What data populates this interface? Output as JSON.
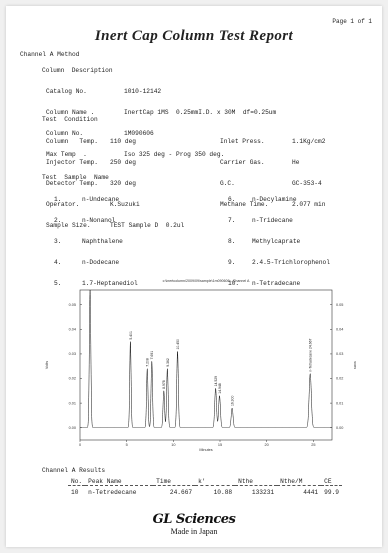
{
  "page": "Page 1 of 1",
  "title": "Inert Cap  Column  Test  Report",
  "channel_method": "Channel A Method",
  "column_description": {
    "heading": "Column  Description",
    "rows": [
      {
        "label": "Catalog No.",
        "value": "1010-12142"
      },
      {
        "label": "Column Name .",
        "value": "InertCap 1MS  0.25mmI.D. x 30M  df=0.25um"
      },
      {
        "label": "Column No.",
        "value": "1M090606"
      },
      {
        "label": "Max Temp  .",
        "value": "Iso 325 deg - Prog 350 deg."
      }
    ]
  },
  "test_condition": {
    "heading": "Test  Condition",
    "left": [
      {
        "label": "Column   Temp.",
        "value": "110 deg"
      },
      {
        "label": "Injector Temp.",
        "value": "250 deg"
      },
      {
        "label": "Detector Temp.",
        "value": "320 deg"
      },
      {
        "label": "Operator.",
        "value": "K.Suzuki"
      },
      {
        "label": "Sample Size.",
        "value": "TEST Sample D  0.2ul"
      }
    ],
    "right": [
      {
        "label": "Inlet Press.",
        "value": "1.1Kg/cm2"
      },
      {
        "label": "Carrier Gas.",
        "value": "He"
      },
      {
        "label": "G.C.",
        "value": "GC-353-4"
      },
      {
        "label": "Methane Time.",
        "value": "2.077 min"
      }
    ]
  },
  "test_sample": {
    "heading": "Test  Sample  Name",
    "left": [
      {
        "no": "1.",
        "name": "n-Undecane"
      },
      {
        "no": "2.",
        "name": "n-Nonanol"
      },
      {
        "no": "3.",
        "name": "Naphthalene"
      },
      {
        "no": "4.",
        "name": "n-Dodecane"
      },
      {
        "no": "5.",
        "name": "1.7-Heptanediol"
      }
    ],
    "right": [
      {
        "no": "6.",
        "name": "n-Decylamine"
      },
      {
        "no": "7.",
        "name": "n-Tridecane"
      },
      {
        "no": "8.",
        "name": "Methylcaprate"
      },
      {
        "no": "9.",
        "name": "2.4.5-Trichlorophenol"
      },
      {
        "no": "10.",
        "name": "n-Tetradecane"
      }
    ]
  },
  "chart_data": {
    "type": "line",
    "title": "c:\\inertcolumn\\2009\\09\\sample\\1m090606 - Channel A",
    "xlabel": "Minutes",
    "ylabel": "Volts",
    "xlim": [
      0,
      27
    ],
    "ylim": [
      -0.005,
      0.056
    ],
    "x_ticks": [
      0,
      5,
      10,
      15,
      20,
      25
    ],
    "y_ticks": [
      0.0,
      0.01,
      0.02,
      0.03,
      0.04,
      0.05
    ],
    "y_tick_labels": [
      "0.00",
      "0.01",
      "0.02",
      "0.03",
      "0.04",
      "0.05"
    ],
    "peaks": [
      {
        "rt": 1.08,
        "height": 0.056,
        "label": ""
      },
      {
        "rt": 5.401,
        "height": 0.035,
        "label": "5.401"
      },
      {
        "rt": 7.208,
        "height": 0.024,
        "label": "7.208"
      },
      {
        "rt": 7.691,
        "height": 0.027,
        "label": "7.691"
      },
      {
        "rt": 8.978,
        "height": 0.015,
        "label": "8.978"
      },
      {
        "rt": 9.362,
        "height": 0.024,
        "label": "9.362"
      },
      {
        "rt": 10.45,
        "height": 0.031,
        "label": "10.450"
      },
      {
        "rt": 14.529,
        "height": 0.016,
        "label": "14.529"
      },
      {
        "rt": 14.948,
        "height": 0.013,
        "label": "14.948"
      },
      {
        "rt": 16.3,
        "height": 0.008,
        "label": "16.300"
      },
      {
        "rt": 24.667,
        "height": 0.022,
        "label": "n-Tetradecane  24.667"
      }
    ]
  },
  "results": {
    "heading": "Channel A Results",
    "columns": [
      "No.",
      "Peak  Name",
      "Time",
      "k'",
      "Nthe",
      "Nthe/M",
      "CE"
    ],
    "rows": [
      [
        "10",
        "n-Tetredecane",
        "24.667",
        "10.88",
        "133231",
        "4441",
        "99.9"
      ]
    ]
  },
  "brand": {
    "logo": "GL Sciences",
    "tagline": "Made in Japan"
  }
}
